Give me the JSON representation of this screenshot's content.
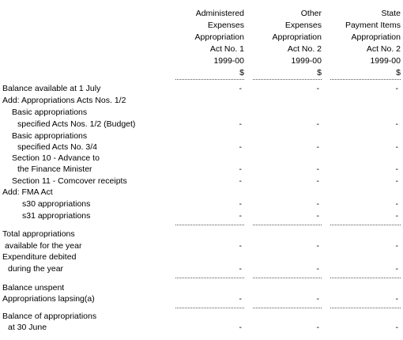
{
  "table": {
    "columns": [
      [
        "Administered",
        "Expenses",
        "Appropriation",
        "Act No. 1",
        "1999-00",
        "$"
      ],
      [
        "Other",
        "Expenses",
        "Appropriation",
        "Act No. 2",
        "1999-00",
        "$"
      ],
      [
        "State",
        "Payment Items",
        "Appropriation",
        "Act No. 2",
        "1999-00",
        "$"
      ]
    ],
    "rows": [
      {
        "label": "Balance available at 1 July",
        "values": [
          "-",
          "-",
          "-"
        ]
      },
      {
        "label": "Add:  Appropriations Acts Nos. 1/2"
      },
      {
        "label": "Basic appropriations"
      },
      {
        "label": "specified Acts Nos. 1/2 (Budget)",
        "values": [
          "-",
          "-",
          "-"
        ]
      },
      {
        "label": "Basic appropriations"
      },
      {
        "label": "specified Acts No. 3/4",
        "values": [
          "-",
          "-",
          "-"
        ]
      },
      {
        "label": "Section 10 - Advance to"
      },
      {
        "label": "the Finance Minister",
        "values": [
          "-",
          "-",
          "-"
        ]
      },
      {
        "label": "Section 11 - Comcover receipts",
        "values": [
          "-",
          "-",
          "-"
        ]
      },
      {
        "label": "Add:  FMA Act"
      },
      {
        "label": "s30 appropriations",
        "values": [
          "-",
          "-",
          "-"
        ]
      },
      {
        "label": "s31 appropriations",
        "values": [
          "-",
          "-",
          "-"
        ]
      },
      {
        "label": "Total appropriations"
      },
      {
        "label": "available for the year",
        "values": [
          "-",
          "-",
          "-"
        ]
      },
      {
        "label": "Expenditure debited"
      },
      {
        "label": "during the year",
        "values": [
          "-",
          "-",
          "-"
        ]
      },
      {
        "label": "Balance unspent"
      },
      {
        "label": "Appropriations lapsing(a)",
        "values": [
          "-",
          "-",
          "-"
        ]
      },
      {
        "label": "Balance of appropriations"
      },
      {
        "label": "at 30 June",
        "values": [
          "-",
          "-",
          "-"
        ]
      }
    ]
  }
}
